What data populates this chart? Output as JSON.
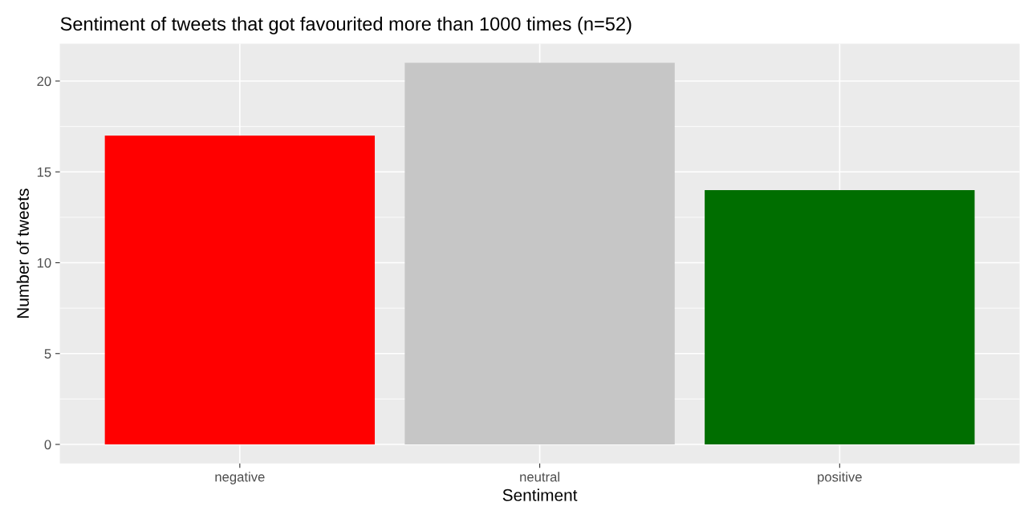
{
  "chart_data": {
    "type": "bar",
    "title": "Sentiment of tweets that got favourited more than 1000 times (n=52)",
    "xlabel": "Sentiment",
    "ylabel": "Number of tweets",
    "categories": [
      "negative",
      "neutral",
      "positive"
    ],
    "values": [
      17,
      21,
      14
    ],
    "colors": [
      "#ff0000",
      "#c6c6c6",
      "#006e00"
    ],
    "ylim": [
      -1.05,
      22.05
    ],
    "yticks": [
      0,
      5,
      10,
      15,
      20
    ],
    "grid": true
  }
}
